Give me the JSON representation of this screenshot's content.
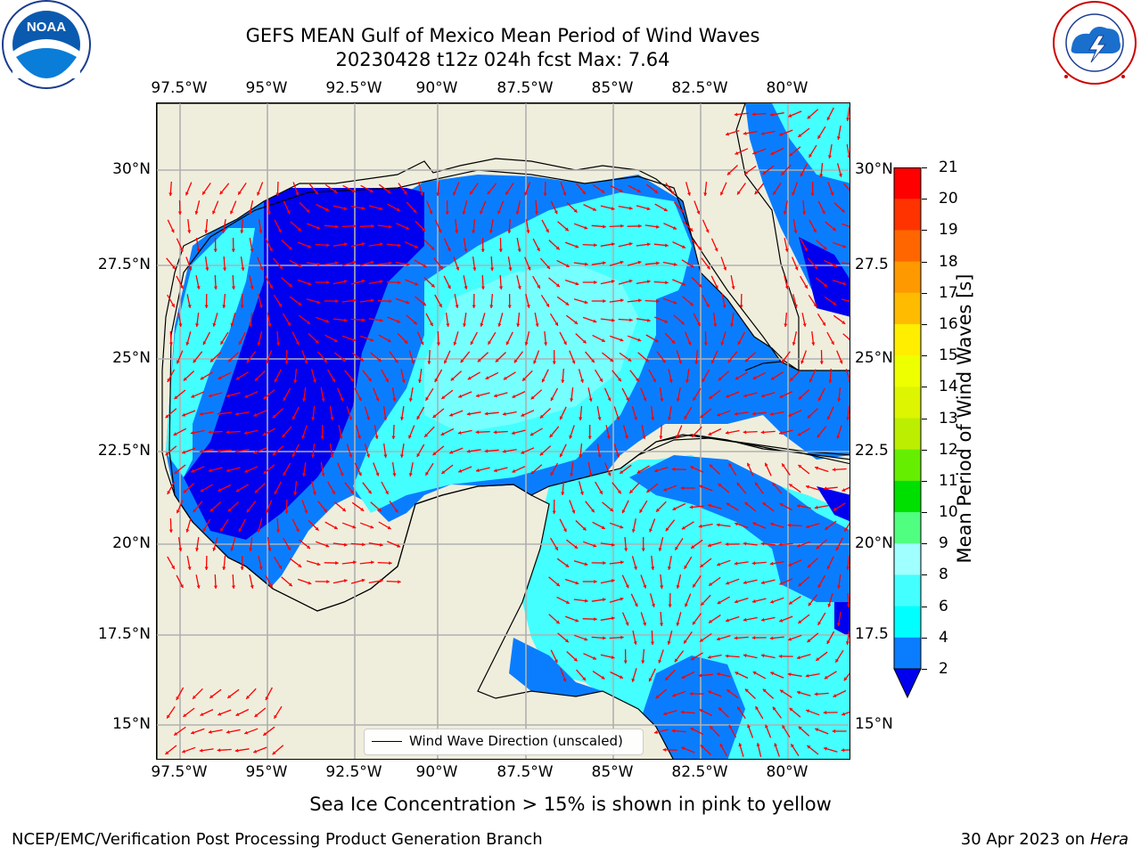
{
  "title": {
    "line1": "GEFS MEAN Gulf of Mexico Mean Period of Wind Waves",
    "line2": "20230428 t12z 024h fcst   Max: 7.64"
  },
  "map": {
    "lon_labels_top": [
      "97.5°W",
      "95°W",
      "92.5°W",
      "90°W",
      "87.5°W",
      "85°W",
      "82.5°W",
      "80°W"
    ],
    "lon_labels_bottom": [
      "97.5°W",
      "95°W",
      "92.5°W",
      "90°W",
      "87.5°W",
      "85°W",
      "82.5°W",
      "80°W"
    ],
    "lat_labels_left": [
      "30°N",
      "27.5°N",
      "25°N",
      "22.5°N",
      "20°N",
      "17.5°N",
      "15°N"
    ],
    "lat_labels_right": [
      "30°N",
      "27.5",
      "25°N",
      "22.5",
      "20°N",
      "17.5",
      "15°N"
    ],
    "legend_label": "Wind Wave Direction (unscaled)",
    "land_color": "#efeedd",
    "arrow_color": "#ff0000",
    "grid_color": "#b0b0b0"
  },
  "colorbar": {
    "label": "Mean Period of Wind Waves [s]",
    "ticks": [
      "2",
      "4",
      "6",
      "8",
      "9",
      "10",
      "11",
      "12",
      "13",
      "14",
      "15",
      "16",
      "17",
      "18",
      "19",
      "20",
      "21"
    ],
    "colors": [
      "#0000ee",
      "#0a7dff",
      "#00ffff",
      "#44ffff",
      "#a0ffff",
      "#50ff80",
      "#00e000",
      "#66ee00",
      "#bbee00",
      "#ddf500",
      "#eeff00",
      "#ffee00",
      "#ffbb00",
      "#ff9900",
      "#ff6600",
      "#ff3300",
      "#ff0000"
    ]
  },
  "footer": {
    "note": "Sea Ice Concentration > 15% is shown in pink to yellow",
    "left": "NCEP/EMC/Verification Post Processing Product Generation Branch",
    "right_date": "30 Apr 2023 on ",
    "right_machine": "Hera"
  },
  "logos": {
    "noaa_text": "NOAA",
    "noaa_ring": "NATIONAL OCEANIC AND ATMOSPHERIC ADMINISTRATION · U.S. DEPARTMENT OF COMMERCE",
    "nws_ring": "NATIONAL WEATHER SERVICE"
  }
}
